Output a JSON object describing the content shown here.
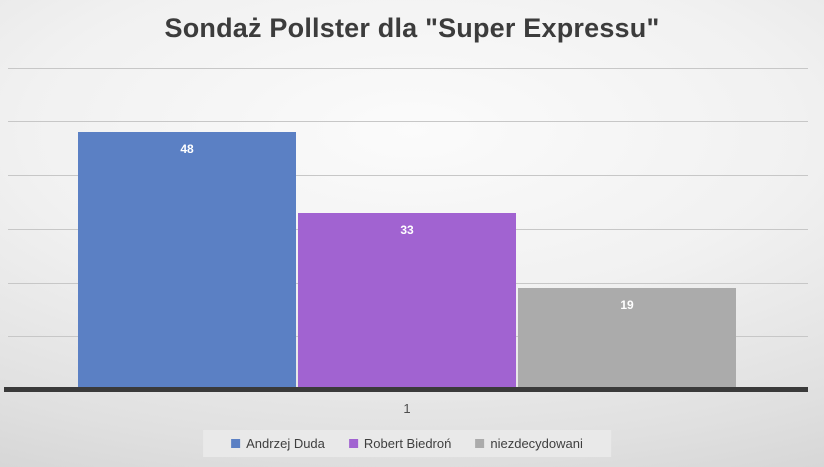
{
  "title": "Sondaż Pollster dla \"Super Expressu\"",
  "chart_data": {
    "type": "bar",
    "title": "Sondaż Pollster dla \"Super Expressu\"",
    "categories": [
      "1"
    ],
    "series": [
      {
        "name": "Andrzej Duda",
        "values": [
          48
        ],
        "color": "#5B80C4"
      },
      {
        "name": "Robert Biedroń",
        "values": [
          33
        ],
        "color": "#A163D1"
      },
      {
        "name": "niezdecydowani",
        "values": [
          19
        ],
        "color": "#ABABAB"
      }
    ],
    "xlabel": "",
    "ylabel": "",
    "ylim": [
      0,
      60
    ],
    "grid": true,
    "gridline_step": 10,
    "legend_position": "bottom",
    "data_labels_position": "inside-top"
  },
  "colors": {
    "title_text": "#3C3C3C",
    "axis_line": "#3A3A3A",
    "gridline": "#C7C7C7",
    "category_text": "#4D4D4D",
    "legend_text": "#3F3F3F",
    "legend_background": "#E9E9E9",
    "data_label_text": "#FFFFFF"
  }
}
